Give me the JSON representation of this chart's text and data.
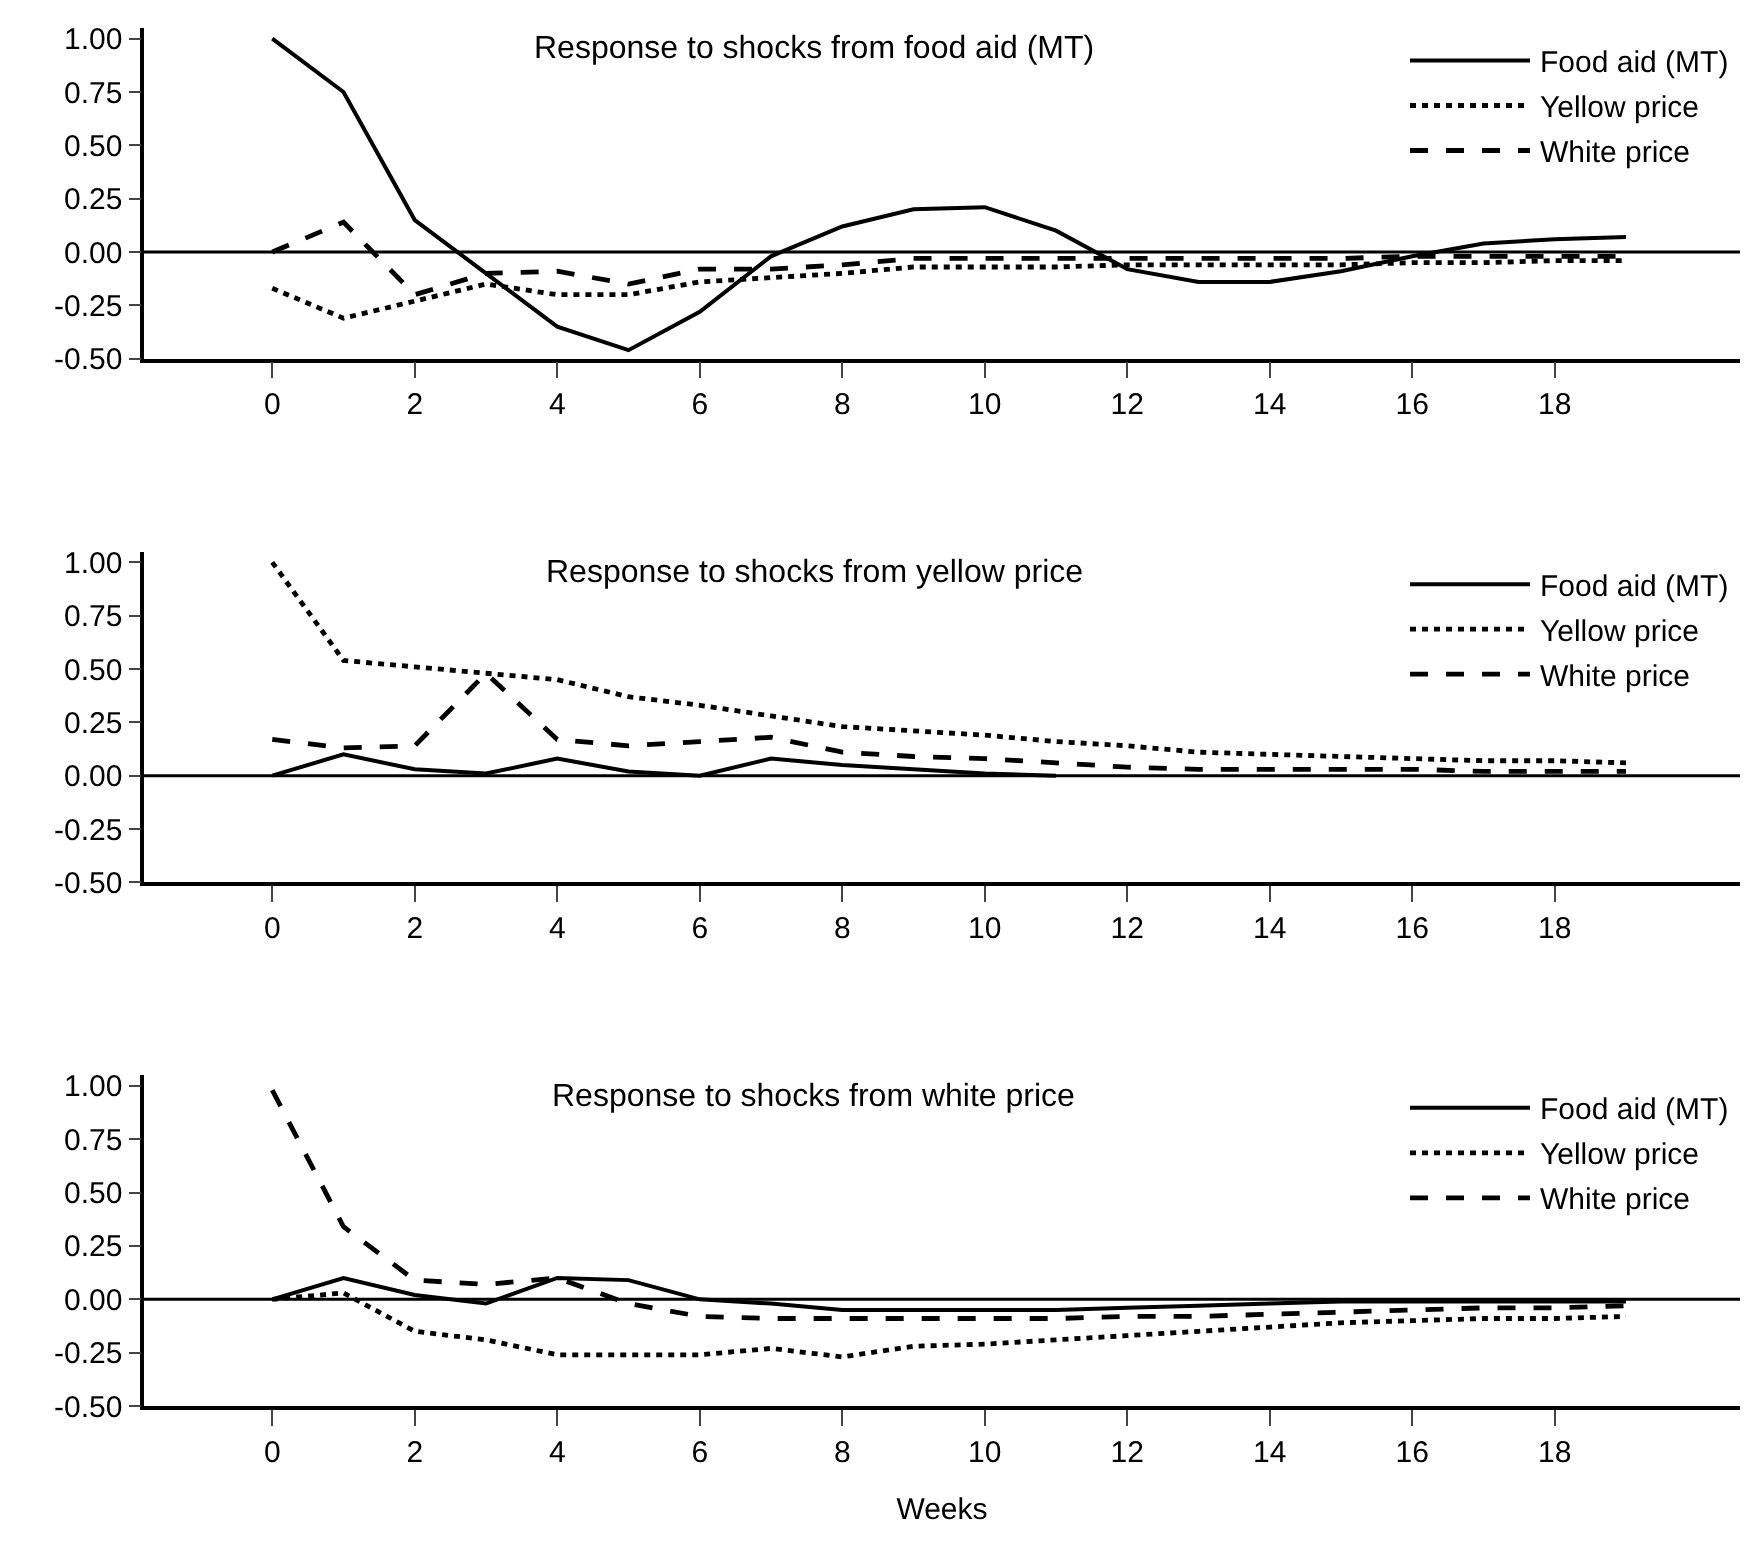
{
  "chart_data": [
    {
      "type": "line",
      "title": "Response to shocks from food aid (MT)",
      "x": [
        0,
        1,
        2,
        3,
        4,
        5,
        6,
        7,
        8,
        9,
        10,
        11,
        12,
        13,
        14,
        15,
        16,
        17,
        18,
        19
      ],
      "xlim": [
        -1.8,
        20.6
      ],
      "xticks": [
        0,
        2,
        4,
        6,
        8,
        10,
        12,
        14,
        16,
        18
      ],
      "ylim": [
        -0.5,
        1.05
      ],
      "yticks": [
        {
          "value": 1,
          "label": "1.00"
        },
        {
          "value": 0.75,
          "label": "0.75"
        },
        {
          "value": 0.5,
          "label": "0.50"
        },
        {
          "value": 0.25,
          "label": "0.25"
        },
        {
          "value": 0,
          "label": "0.00"
        },
        {
          "value": -0.25,
          "label": "-0.25"
        },
        {
          "value": -0.5,
          "label": "-0.50"
        }
      ],
      "legend": "top right",
      "marker": "none",
      "ref_lines": [
        {
          "axis": "y",
          "value": 0,
          "color": "#000000"
        }
      ],
      "series": [
        {
          "name": "Food aid (MT)",
          "color": "#000000",
          "line_style": "solid",
          "values": [
            1.0,
            0.75,
            0.15,
            -0.1,
            -0.35,
            -0.46,
            -0.28,
            -0.02,
            0.12,
            0.2,
            0.21,
            0.1,
            -0.08,
            -0.14,
            -0.14,
            -0.09,
            -0.02,
            0.04,
            0.06,
            0.07
          ]
        },
        {
          "name": "Yellow price",
          "color": "#000000",
          "line_style": "dotted",
          "values": [
            -0.17,
            -0.31,
            -0.23,
            -0.15,
            -0.2,
            -0.2,
            -0.14,
            -0.12,
            -0.1,
            -0.07,
            -0.07,
            -0.07,
            -0.06,
            -0.06,
            -0.06,
            -0.06,
            -0.05,
            -0.05,
            -0.04,
            -0.04
          ]
        },
        {
          "name": "White price",
          "color": "#000000",
          "line_style": "dashed",
          "values": [
            0.0,
            0.14,
            -0.2,
            -0.1,
            -0.09,
            -0.15,
            -0.08,
            -0.08,
            -0.06,
            -0.03,
            -0.03,
            -0.03,
            -0.03,
            -0.03,
            -0.03,
            -0.03,
            -0.02,
            -0.02,
            -0.02,
            -0.02
          ]
        }
      ]
    },
    {
      "type": "line",
      "title": "Response to shocks from yellow price",
      "x": [
        0,
        1,
        2,
        3,
        4,
        5,
        6,
        7,
        8,
        9,
        10,
        11,
        12,
        13,
        14,
        15,
        16,
        17,
        18,
        19
      ],
      "xlim": [
        -1.8,
        20.6
      ],
      "xticks": [
        0,
        2,
        4,
        6,
        8,
        10,
        12,
        14,
        16,
        18
      ],
      "ylim": [
        -0.5,
        1.05
      ],
      "yticks": [
        {
          "value": 1,
          "label": "1.00"
        },
        {
          "value": 0.75,
          "label": "0.75"
        },
        {
          "value": 0.5,
          "label": "0.50"
        },
        {
          "value": 0.25,
          "label": "0.25"
        },
        {
          "value": 0,
          "label": "0.00"
        },
        {
          "value": -0.25,
          "label": "-0.25"
        },
        {
          "value": -0.5,
          "label": "-0.50"
        }
      ],
      "legend": "top right",
      "marker": "none",
      "ref_lines": [
        {
          "axis": "y",
          "value": 0,
          "color": "#000000"
        }
      ],
      "series": [
        {
          "name": "Food aid (MT)",
          "color": "#000000",
          "line_style": "solid",
          "values": [
            0.0,
            0.1,
            0.03,
            0.01,
            0.08,
            0.02,
            0.0,
            0.08,
            0.05,
            0.03,
            0.01,
            0.0,
            null,
            null,
            null,
            null,
            null,
            null,
            null,
            null
          ]
        },
        {
          "name": "Yellow price",
          "color": "#000000",
          "line_style": "dotted",
          "values": [
            1.0,
            0.54,
            0.51,
            0.48,
            0.45,
            0.37,
            0.33,
            0.28,
            0.23,
            0.21,
            0.19,
            0.16,
            0.14,
            0.11,
            0.1,
            0.09,
            0.08,
            0.07,
            0.07,
            0.06
          ]
        },
        {
          "name": "White price",
          "color": "#000000",
          "line_style": "dashed",
          "values": [
            0.17,
            0.13,
            0.14,
            0.48,
            0.17,
            0.14,
            0.16,
            0.18,
            0.11,
            0.09,
            0.08,
            0.06,
            0.04,
            0.03,
            0.03,
            0.03,
            0.03,
            0.02,
            0.02,
            0.02
          ]
        }
      ]
    },
    {
      "type": "line",
      "title": "Response to shocks from white price",
      "xlabel": "Weeks",
      "x": [
        0,
        1,
        2,
        3,
        4,
        5,
        6,
        7,
        8,
        9,
        10,
        11,
        12,
        13,
        14,
        15,
        16,
        17,
        18,
        19
      ],
      "xlim": [
        -1.8,
        20.6
      ],
      "xticks": [
        0,
        2,
        4,
        6,
        8,
        10,
        12,
        14,
        16,
        18
      ],
      "ylim": [
        -0.5,
        1.05
      ],
      "yticks": [
        {
          "value": 1,
          "label": "1.00"
        },
        {
          "value": 0.75,
          "label": "0.75"
        },
        {
          "value": 0.5,
          "label": "0.50"
        },
        {
          "value": 0.25,
          "label": "0.25"
        },
        {
          "value": 0,
          "label": "0.00"
        },
        {
          "value": -0.25,
          "label": "-0.25"
        },
        {
          "value": -0.5,
          "label": "-0.50"
        }
      ],
      "legend": "top right",
      "marker": "none",
      "ref_lines": [
        {
          "axis": "y",
          "value": 0,
          "color": "#000000"
        }
      ],
      "series": [
        {
          "name": "Food aid (MT)",
          "color": "#000000",
          "line_style": "solid",
          "values": [
            0.0,
            0.1,
            0.02,
            -0.02,
            0.1,
            0.09,
            0.0,
            -0.02,
            -0.05,
            -0.05,
            -0.05,
            -0.05,
            -0.04,
            -0.03,
            -0.02,
            -0.01,
            -0.01,
            -0.01,
            -0.01,
            -0.01
          ]
        },
        {
          "name": "Yellow price",
          "color": "#000000",
          "line_style": "dotted",
          "values": [
            0.0,
            0.03,
            -0.15,
            -0.19,
            -0.26,
            -0.26,
            -0.26,
            -0.23,
            -0.27,
            -0.22,
            -0.21,
            -0.19,
            -0.17,
            -0.15,
            -0.13,
            -0.11,
            -0.1,
            -0.09,
            -0.09,
            -0.08
          ]
        },
        {
          "name": "White price",
          "color": "#000000",
          "line_style": "dashed",
          "values": [
            0.98,
            0.34,
            0.09,
            0.07,
            0.1,
            -0.02,
            -0.08,
            -0.09,
            -0.09,
            -0.09,
            -0.09,
            -0.09,
            -0.08,
            -0.08,
            -0.07,
            -0.06,
            -0.05,
            -0.04,
            -0.04,
            -0.03
          ]
        }
      ]
    }
  ]
}
